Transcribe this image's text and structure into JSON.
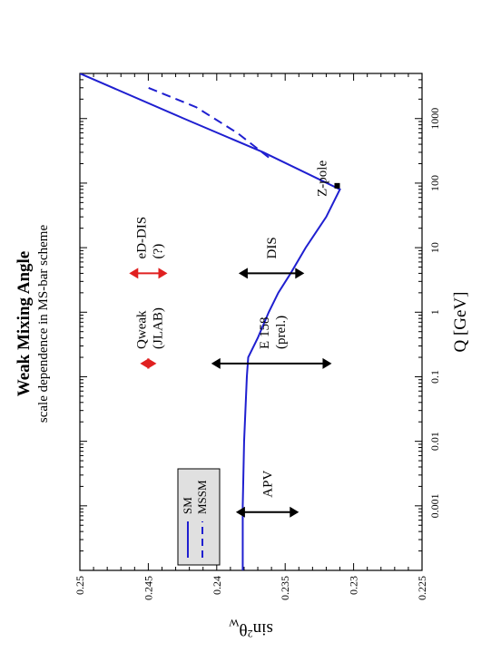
{
  "chart_data": {
    "type": "line",
    "orientation": "rotated-90-ccw",
    "title": "Weak Mixing Angle",
    "subtitle": "scale dependence in MS-bar scheme",
    "xlabel": "Q [GeV]",
    "ylabel": "sin²θW",
    "ylabel_parts": {
      "pre": "sin",
      "sup": "2",
      "main": "θ",
      "sub": "W"
    },
    "x_scale": "log",
    "xlim": [
      0.0001,
      5000
    ],
    "ylim": [
      0.225,
      0.25
    ],
    "x_ticks": [
      {
        "value": 0.001,
        "label": "0.001"
      },
      {
        "value": 0.01,
        "label": "0.01"
      },
      {
        "value": 0.1,
        "label": "0.1"
      },
      {
        "value": 1,
        "label": "1"
      },
      {
        "value": 10,
        "label": "10"
      },
      {
        "value": 100,
        "label": "100"
      },
      {
        "value": 1000,
        "label": "1000"
      }
    ],
    "y_ticks": [
      {
        "value": 0.225,
        "label": "0.225"
      },
      {
        "value": 0.23,
        "label": "0.23"
      },
      {
        "value": 0.235,
        "label": "0.235"
      },
      {
        "value": 0.24,
        "label": "0.24"
      },
      {
        "value": 0.245,
        "label": "0.245"
      },
      {
        "value": 0.25,
        "label": "0.25"
      }
    ],
    "series": [
      {
        "name": "SM",
        "style": "solid",
        "color": "#1f1fd0",
        "points": [
          [
            0.0001,
            0.2381
          ],
          [
            0.001,
            0.2381
          ],
          [
            0.01,
            0.238
          ],
          [
            0.1,
            0.2378
          ],
          [
            0.2,
            0.2377
          ],
          [
            0.4,
            0.237
          ],
          [
            1,
            0.2362
          ],
          [
            2,
            0.2355
          ],
          [
            4,
            0.2346
          ],
          [
            10,
            0.2335
          ],
          [
            30,
            0.232
          ],
          [
            80,
            0.231
          ],
          [
            300,
            0.2366
          ],
          [
            1000,
            0.2424
          ],
          [
            5000,
            0.25
          ]
        ]
      },
      {
        "name": "MSSM",
        "style": "dashed",
        "color": "#1f1fd0",
        "points": [
          [
            250,
            0.2362
          ],
          [
            600,
            0.2385
          ],
          [
            1500,
            0.2415
          ],
          [
            3000,
            0.245
          ]
        ]
      }
    ],
    "measurements": [
      {
        "label": "APV",
        "x": 0.0008,
        "y_low": 0.234,
        "y_high": 0.2386,
        "color": "#000000"
      },
      {
        "label": "E 158",
        "label2": "(prel.)",
        "x": 0.16,
        "y_low": 0.2316,
        "y_high": 0.2404,
        "color": "#000000"
      },
      {
        "label": "Qweak",
        "label2": "(JLAB)",
        "x": 0.16,
        "y_low": 0.2444,
        "y_high": 0.2456,
        "color": "#e02020"
      },
      {
        "label": "DIS",
        "x": 4,
        "y_low": 0.2336,
        "y_high": 0.2384,
        "color": "#000000"
      },
      {
        "label": "eD-DIS",
        "label2": "(?)",
        "x": 4,
        "y_low": 0.2436,
        "y_high": 0.2464,
        "color": "#e02020"
      }
    ],
    "annotations": [
      {
        "label": "Z-pole",
        "x": 91,
        "y": 0.2312
      }
    ],
    "legend": {
      "position": "top-left",
      "entries": [
        {
          "name": "SM",
          "style": "solid"
        },
        {
          "name": "MSSM",
          "style": "dashed"
        }
      ]
    }
  }
}
